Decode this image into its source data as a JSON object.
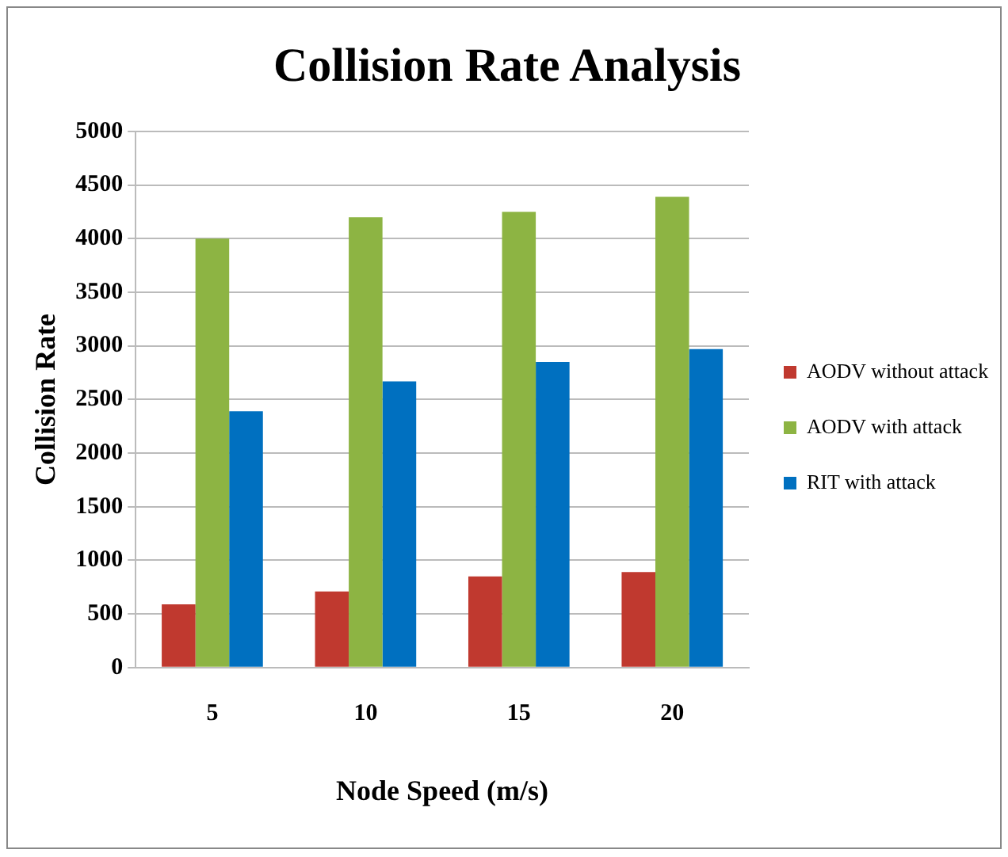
{
  "chart_data": {
    "type": "bar",
    "title": "Collision Rate Analysis",
    "xlabel": "Node Speed (m/s)",
    "ylabel": "Collision Rate",
    "categories": [
      "5",
      "10",
      "15",
      "20"
    ],
    "series": [
      {
        "name": "AODV without attack",
        "color": "#c0392f",
        "values": [
          590,
          710,
          850,
          890
        ]
      },
      {
        "name": "AODV with attack",
        "color": "#8db443",
        "values": [
          4000,
          4200,
          4250,
          4390
        ]
      },
      {
        "name": "RIT with attack",
        "color": "#0070c0",
        "values": [
          2390,
          2670,
          2850,
          2970
        ]
      }
    ],
    "ylim": [
      0,
      5000
    ],
    "yticks": [
      0,
      500,
      1000,
      1500,
      2000,
      2500,
      3000,
      3500,
      4000,
      4500,
      5000
    ],
    "grid": "y",
    "legend": "right"
  }
}
